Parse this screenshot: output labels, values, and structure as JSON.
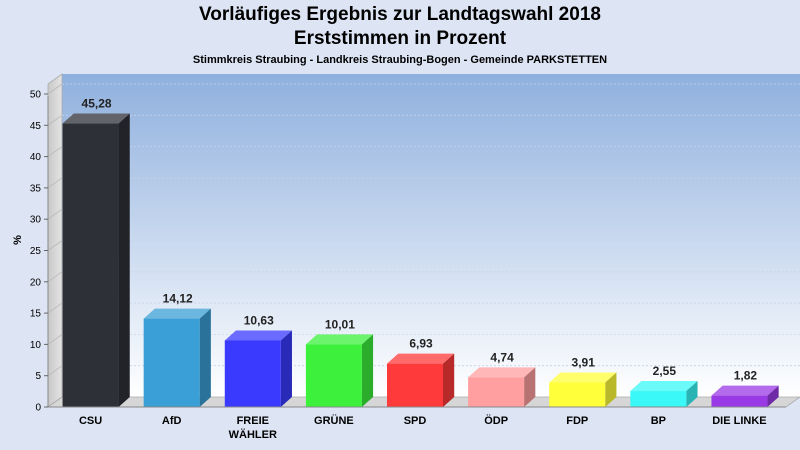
{
  "header": {
    "title_line1": "Vorläufiges Ergebnis zur Landtagswahl 2018",
    "title_line2": "Erststimmen in Prozent",
    "subtitle": "Stimmkreis Straubing - Landkreis Straubing-Bogen - Gemeinde PARKSTETTEN"
  },
  "chart_data": {
    "type": "bar",
    "title": "Vorläufiges Ergebnis zur Landtagswahl 2018 – Erststimmen in Prozent",
    "subtitle": "Stimmkreis Straubing - Landkreis Straubing-Bogen - Gemeinde PARKSTETTEN",
    "xlabel": "",
    "ylabel": "%",
    "ylim": [
      0,
      50
    ],
    "yticks": [
      0,
      5,
      10,
      15,
      20,
      25,
      30,
      35,
      40,
      45,
      50
    ],
    "grid": true,
    "categories": [
      "CSU",
      "AfD",
      "FREIE WÄHLER",
      "GRÜNE",
      "SPD",
      "ÖDP",
      "FDP",
      "BP",
      "DIE LINKE"
    ],
    "category_lines": [
      [
        "CSU"
      ],
      [
        "AfD"
      ],
      [
        "FREIE",
        "WÄHLER"
      ],
      [
        "GRÜNE"
      ],
      [
        "SPD"
      ],
      [
        "ÖDP"
      ],
      [
        "FDP"
      ],
      [
        "BP"
      ],
      [
        "DIE LINKE"
      ]
    ],
    "values": [
      45.28,
      14.12,
      10.63,
      10.01,
      6.93,
      4.74,
      3.91,
      2.55,
      1.82
    ],
    "value_labels": [
      "45,28",
      "14,12",
      "10,63",
      "10,01",
      "6,93",
      "4,74",
      "3,91",
      "2,55",
      "1,82"
    ],
    "colors": [
      "#2e3038",
      "#3a9fd6",
      "#3a3aff",
      "#3cf03c",
      "#ff3a3a",
      "#ff9f9f",
      "#ffff3a",
      "#3af8f8",
      "#9a3ae6"
    ]
  }
}
